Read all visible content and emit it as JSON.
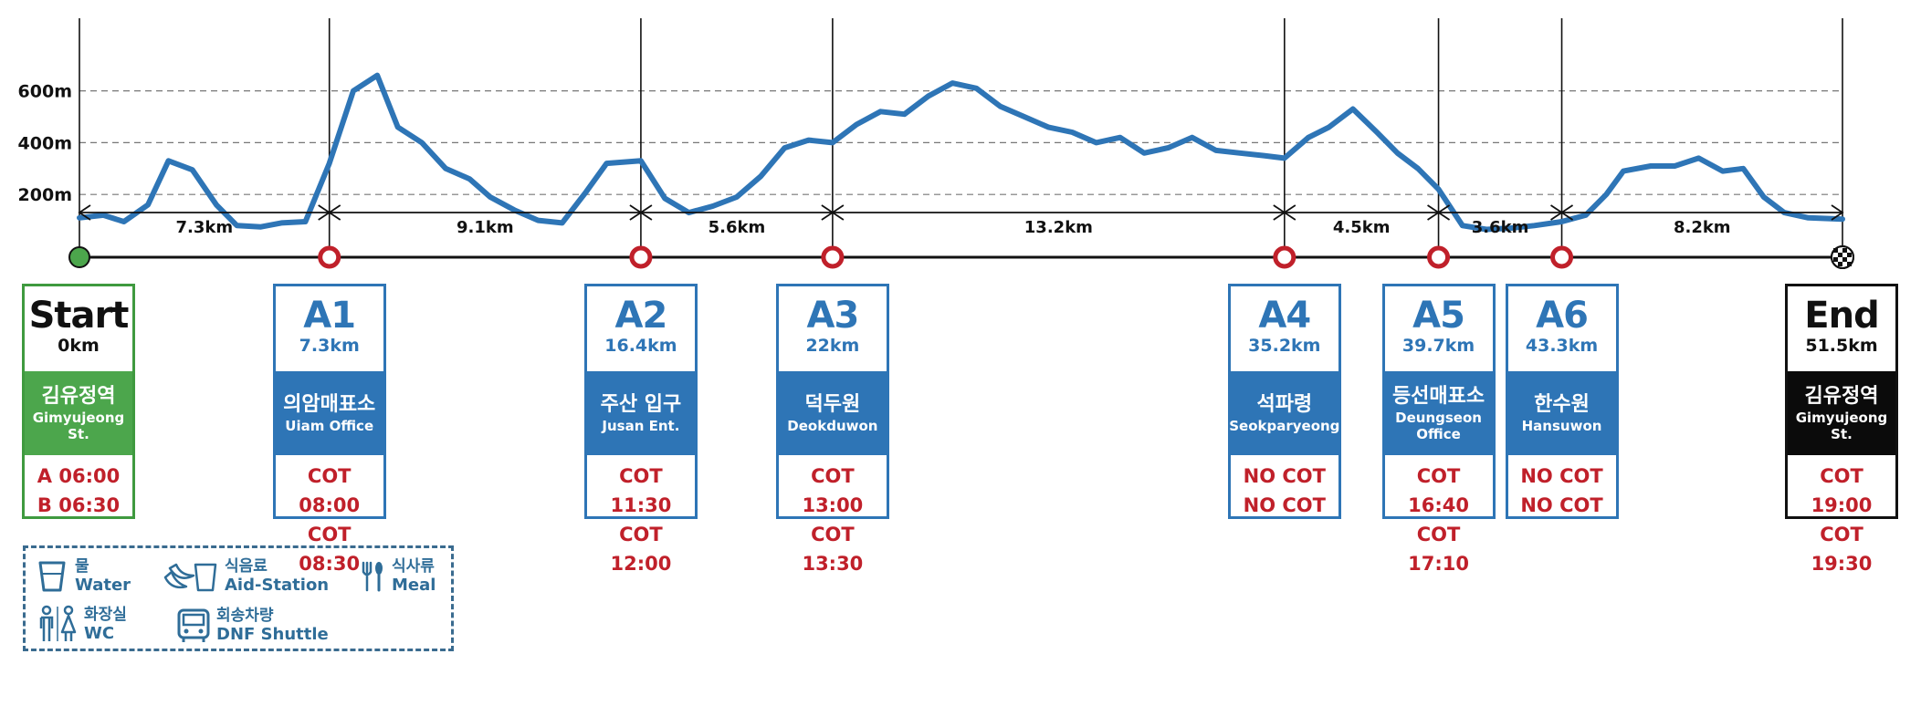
{
  "chart_data": {
    "type": "area",
    "x": [
      0,
      0.7,
      1.3,
      2.0,
      2.6,
      3.3,
      4.0,
      4.6,
      5.3,
      5.9,
      6.6,
      7.3,
      8.0,
      8.7,
      9.3,
      10.0,
      10.7,
      11.4,
      12.0,
      12.7,
      13.4,
      14.1,
      14.8,
      15.4,
      16.4,
      17.1,
      17.8,
      18.5,
      19.2,
      19.9,
      20.6,
      21.3,
      22.0,
      22.7,
      23.4,
      24.1,
      24.8,
      25.5,
      26.2,
      26.9,
      27.6,
      28.3,
      29.0,
      29.7,
      30.4,
      31.1,
      31.8,
      32.5,
      33.2,
      33.9,
      34.6,
      35.2,
      35.9,
      36.5,
      37.2,
      37.9,
      38.5,
      39.1,
      39.7,
      40.4,
      41.1,
      41.8,
      42.5,
      43.3,
      44.0,
      44.6,
      45.1,
      45.9,
      46.6,
      47.3,
      48.0,
      48.6,
      49.2,
      49.8,
      50.5,
      51.5
    ],
    "elevation": [
      110,
      120,
      95,
      160,
      330,
      295,
      160,
      80,
      75,
      90,
      95,
      320,
      600,
      660,
      460,
      400,
      300,
      260,
      190,
      140,
      100,
      90,
      210,
      320,
      330,
      185,
      130,
      155,
      190,
      270,
      380,
      410,
      400,
      470,
      520,
      510,
      580,
      630,
      610,
      540,
      500,
      460,
      440,
      400,
      420,
      360,
      380,
      420,
      370,
      360,
      350,
      340,
      420,
      460,
      530,
      440,
      360,
      300,
      220,
      80,
      65,
      70,
      80,
      95,
      120,
      200,
      290,
      310,
      310,
      340,
      290,
      300,
      190,
      130,
      110,
      105
    ],
    "elevation_unit": "m",
    "ylim": [
      0,
      700
    ],
    "yticks": [
      {
        "label": "600m",
        "value": 600
      },
      {
        "label": "400m",
        "value": 400
      },
      {
        "label": "200m",
        "value": 200
      }
    ],
    "markers_km": [
      0,
      7.3,
      16.4,
      22,
      35.2,
      39.7,
      43.3,
      51.5
    ],
    "segments": [
      {
        "from": 0,
        "to": 7.3,
        "label": "7.3km"
      },
      {
        "from": 7.3,
        "to": 16.4,
        "label": "9.1km"
      },
      {
        "from": 16.4,
        "to": 22,
        "label": "5.6km"
      },
      {
        "from": 22,
        "to": 35.2,
        "label": "13.2km"
      },
      {
        "from": 35.2,
        "to": 39.7,
        "label": "4.5km"
      },
      {
        "from": 39.7,
        "to": 43.3,
        "label": "3.6km"
      },
      {
        "from": 43.3,
        "to": 51.5,
        "label": "8.2km"
      }
    ],
    "grid": "horizontal dashed",
    "colors": {
      "line": "#2e75b6",
      "axis": "#111111",
      "marker_ring": "#c0202a",
      "start": "#4ca64c"
    }
  },
  "cards": [
    {
      "id": "Start",
      "dist": "0km",
      "name_ko": "김유정역",
      "name_en": "Gimyujeong St.",
      "cot": [
        "A 06:00",
        "B 06:30"
      ],
      "kind": "start"
    },
    {
      "id": "A1",
      "dist": "7.3km",
      "name_ko": "의암매표소",
      "name_en": "Uiam Office",
      "cot": [
        "COT 08:00",
        "COT 08:30"
      ],
      "kind": "aid"
    },
    {
      "id": "A2",
      "dist": "16.4km",
      "name_ko": "주산 입구",
      "name_en": "Jusan Ent.",
      "cot": [
        "COT 11:30",
        "COT 12:00"
      ],
      "kind": "aid"
    },
    {
      "id": "A3",
      "dist": "22km",
      "name_ko": "덕두원",
      "name_en": "Deokduwon",
      "cot": [
        "COT 13:00",
        "COT 13:30"
      ],
      "kind": "aid"
    },
    {
      "id": "A4",
      "dist": "35.2km",
      "name_ko": "석파령",
      "name_en": "Seokparyeong",
      "cot": [
        "NO COT",
        "NO COT"
      ],
      "kind": "aid"
    },
    {
      "id": "A5",
      "dist": "39.7km",
      "name_ko": "등선매표소",
      "name_en": "Deungseon\nOffice",
      "cot": [
        "COT 16:40",
        "COT 17:10"
      ],
      "kind": "aid"
    },
    {
      "id": "A6",
      "dist": "43.3km",
      "name_ko": "한수원",
      "name_en": "Hansuwon",
      "cot": [
        "NO COT",
        "NO COT"
      ],
      "kind": "aid"
    },
    {
      "id": "End",
      "dist": "51.5km",
      "name_ko": "김유정역",
      "name_en": "Gimyujeong St.",
      "cot": [
        "COT 19:00",
        "COT 19:30"
      ],
      "kind": "end"
    }
  ],
  "legend": [
    {
      "key": "water",
      "icon": "cup-icon",
      "ko": "물",
      "en": "Water"
    },
    {
      "key": "aid",
      "icon": "banana-cup-icon",
      "ko": "식음료",
      "en": "Aid-Station"
    },
    {
      "key": "meal",
      "icon": "fork-spoon-icon",
      "ko": "식사류",
      "en": "Meal"
    },
    {
      "key": "wc",
      "icon": "restroom-icon",
      "ko": "화장실",
      "en": "WC"
    },
    {
      "key": "shuttle",
      "icon": "bus-icon",
      "ko": "회송차량",
      "en": "DNF Shuttle"
    }
  ]
}
